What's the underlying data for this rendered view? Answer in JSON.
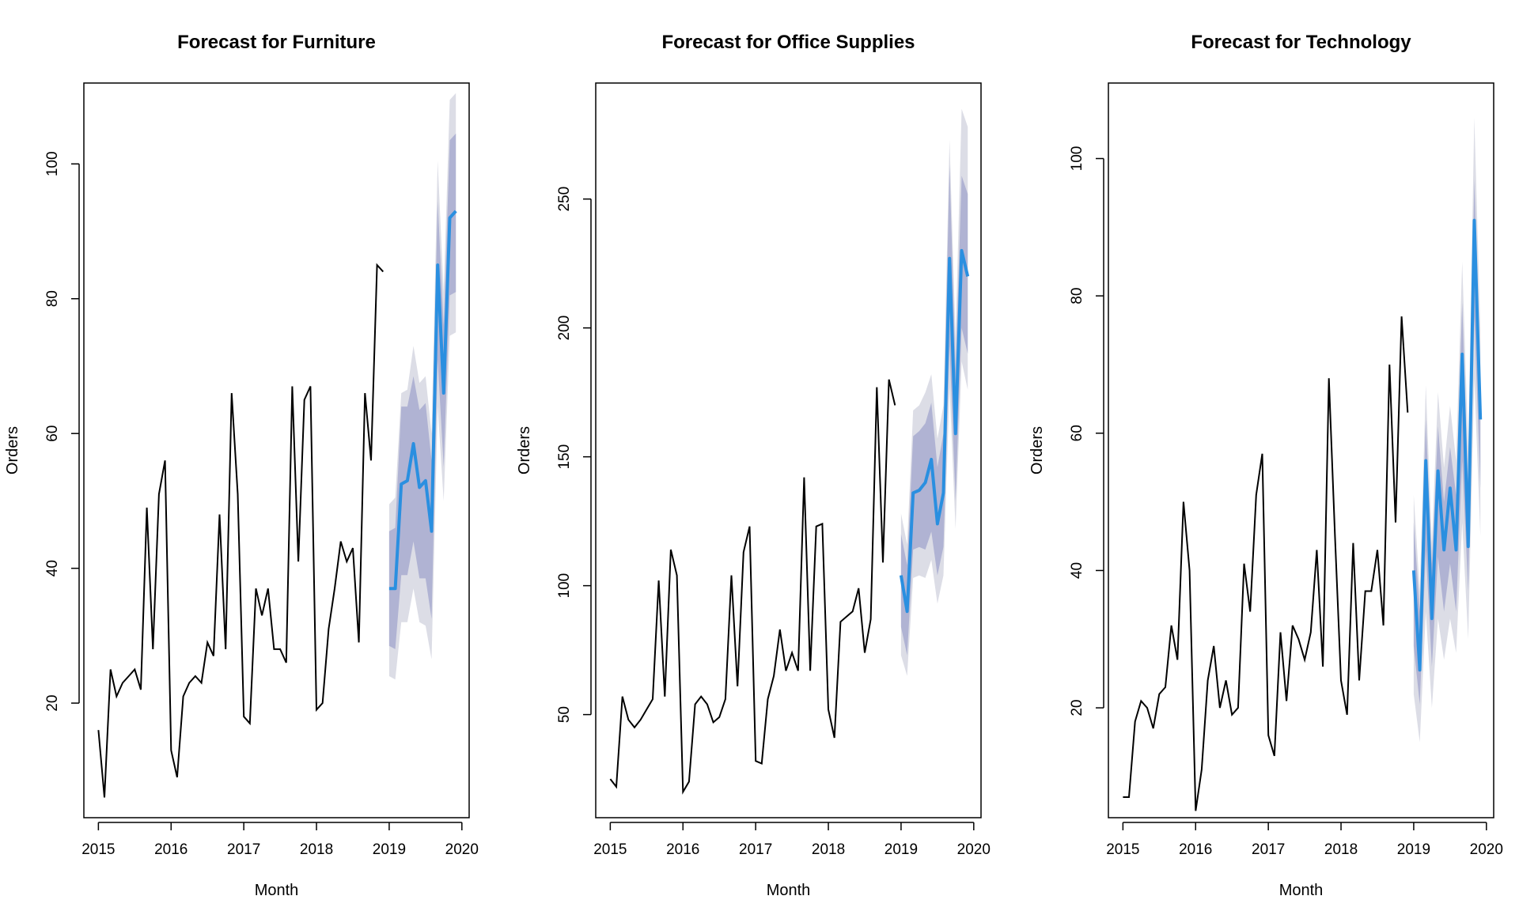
{
  "chart_data": [
    {
      "type": "line",
      "title": "Forecast for Furniture",
      "xlabel": "Month",
      "ylabel": "Orders",
      "xlim": [
        2014.8,
        2020.1
      ],
      "ylim": [
        3,
        112
      ],
      "xticks": [
        "2015",
        "2016",
        "2017",
        "2018",
        "2019",
        "2020"
      ],
      "yticks": [
        "20",
        "40",
        "60",
        "80",
        "100"
      ],
      "colors": {
        "actual": "#000000",
        "forecast": "#2a8fe0",
        "band80": "#b0b3d3",
        "band95": "#dcdde6"
      },
      "series": [
        {
          "key": "actual",
          "values": [
            16,
            6,
            25,
            21,
            23,
            24,
            25,
            22,
            49,
            28,
            51,
            56,
            13,
            9,
            21,
            23,
            24,
            23,
            29,
            27,
            48,
            28,
            66,
            51,
            18,
            17,
            37,
            33,
            37,
            28,
            28,
            26,
            67,
            41,
            65,
            67,
            19,
            20,
            31,
            37,
            44,
            41,
            43,
            29,
            66,
            56,
            85,
            84
          ]
        },
        {
          "key": "forecast",
          "values": [
            37,
            37,
            52.5,
            53,
            58.5,
            52,
            53,
            45.5,
            85,
            66,
            92,
            93
          ],
          "lo80": [
            28.5,
            28,
            39,
            39,
            44,
            38.5,
            38.5,
            32.5,
            71,
            55,
            80.5,
            81
          ],
          "hi80": [
            45.5,
            46,
            64,
            64,
            68.5,
            63.5,
            64.5,
            56,
            94.5,
            76,
            103.5,
            104.5
          ],
          "lo95": [
            24,
            23.5,
            32,
            32,
            37,
            32,
            31.5,
            26.5,
            64,
            50,
            74.5,
            75
          ],
          "hi95": [
            49.5,
            50.5,
            66,
            66.5,
            73,
            67.5,
            68.5,
            60,
            100.5,
            81,
            109.5,
            110.5
          ]
        }
      ]
    },
    {
      "type": "line",
      "title": "Forecast for Office Supplies",
      "xlabel": "Month",
      "ylabel": "Orders",
      "xlim": [
        2014.8,
        2020.1
      ],
      "ylim": [
        10,
        295
      ],
      "xticks": [
        "2015",
        "2016",
        "2017",
        "2018",
        "2019",
        "2020"
      ],
      "yticks": [
        "50",
        "100",
        "150",
        "200",
        "250"
      ],
      "colors": {
        "actual": "#000000",
        "forecast": "#2a8fe0",
        "band80": "#b0b3d3",
        "band95": "#dcdde6"
      },
      "series": [
        {
          "key": "actual",
          "values": [
            25,
            22,
            57,
            48,
            45,
            48,
            52,
            56,
            102,
            57,
            114,
            104,
            20,
            24,
            54,
            57,
            54,
            47,
            49,
            56,
            104,
            61,
            113,
            123,
            32,
            31,
            56,
            65,
            83,
            67,
            74,
            67,
            142,
            67,
            123,
            124,
            52,
            41,
            86,
            88,
            90,
            99,
            74,
            87,
            177,
            109,
            180,
            170
          ]
        },
        {
          "key": "forecast",
          "values": [
            104,
            90,
            136,
            137,
            140,
            149,
            124,
            136,
            227,
            159,
            230,
            220
          ],
          "lo80": [
            84,
            73,
            114,
            115,
            114,
            121,
            104,
            115,
            193,
            133,
            200,
            190
          ],
          "hi80": [
            120,
            108,
            158,
            160,
            163,
            171,
            146,
            159,
            263,
            184,
            259,
            252
          ],
          "lo95": [
            73,
            65,
            103,
            104,
            103,
            110,
            93,
            104,
            177,
            122,
            187,
            176
          ],
          "hi95": [
            128,
            116,
            168,
            170,
            175,
            182,
            157,
            170,
            273,
            196,
            285,
            278
          ]
        }
      ]
    },
    {
      "type": "line",
      "title": "Forecast for Technology",
      "xlabel": "Month",
      "ylabel": "Orders",
      "xlim": [
        2014.8,
        2020.1
      ],
      "ylim": [
        4,
        111
      ],
      "xticks": [
        "2015",
        "2016",
        "2017",
        "2018",
        "2019",
        "2020"
      ],
      "yticks": [
        "20",
        "40",
        "60",
        "80",
        "100"
      ],
      "colors": {
        "actual": "#000000",
        "forecast": "#2a8fe0",
        "band80": "#b0b3d3",
        "band95": "#dcdde6"
      },
      "series": [
        {
          "key": "actual",
          "values": [
            7,
            7,
            18,
            21,
            20,
            17,
            22,
            23,
            32,
            27,
            50,
            40,
            5,
            11,
            24,
            29,
            20,
            24,
            19,
            20,
            41,
            34,
            51,
            57,
            16,
            13,
            31,
            21,
            32,
            30,
            27,
            31,
            43,
            26,
            68,
            45,
            24,
            19,
            44,
            24,
            37,
            37,
            43,
            32,
            70,
            47,
            77,
            63
          ]
        },
        {
          "key": "forecast",
          "values": [
            40,
            25.5,
            56,
            33,
            54.5,
            43,
            52,
            43,
            71.5,
            43.5,
            91,
            62
          ],
          "lo80": [
            29,
            20.5,
            43,
            26,
            42,
            34,
            41,
            34,
            56,
            37,
            77,
            52
          ],
          "hi80": [
            47,
            34,
            62,
            41,
            61,
            50,
            58,
            51,
            79,
            52,
            97,
            68
          ],
          "lo95": [
            22,
            15,
            34,
            20,
            33,
            27,
            33,
            28,
            47,
            30,
            68,
            45
          ],
          "hi95": [
            51,
            37,
            67,
            44,
            66,
            55,
            64,
            56,
            85,
            58,
            106,
            75
          ]
        }
      ]
    }
  ]
}
